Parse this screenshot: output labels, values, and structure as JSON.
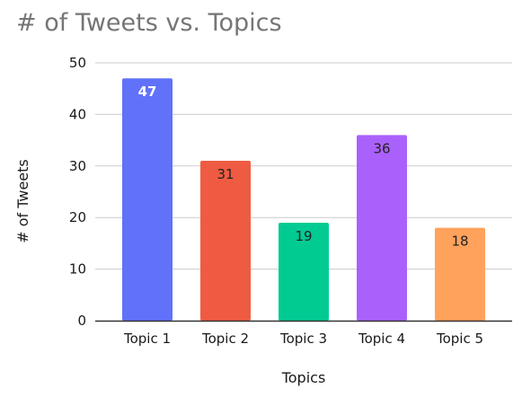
{
  "chart_data": {
    "type": "bar",
    "title": "# of Tweets vs. Topics",
    "xlabel": "Topics",
    "ylabel": "# of Tweets",
    "categories": [
      "Topic 1",
      "Topic 2",
      "Topic 3",
      "Topic 4",
      "Topic 5"
    ],
    "values": [
      47,
      31,
      19,
      36,
      18
    ],
    "value_labels": [
      "47",
      "31",
      "19",
      "36",
      "18"
    ],
    "colors": [
      "#6171FA",
      "#EF5B42",
      "#02CB92",
      "#AA61FB",
      "#FFA25B"
    ],
    "label_colors": [
      "#ffffff",
      "#222222",
      "#222222",
      "#222222",
      "#222222"
    ],
    "ylim": [
      0,
      50
    ],
    "yticks": [
      "0",
      "10",
      "20",
      "30",
      "40",
      "50"
    ],
    "grid": true,
    "legend": "none"
  }
}
